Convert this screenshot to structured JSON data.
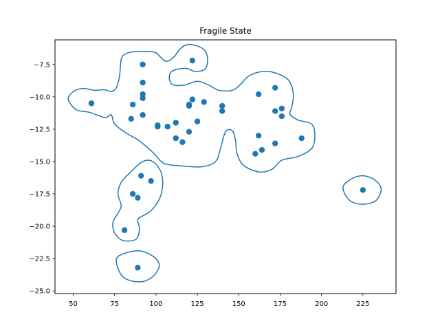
{
  "chart_data": {
    "type": "scatter",
    "title": "Fragile State",
    "xlabel": "",
    "ylabel": "",
    "xlim": [
      39,
      245
    ],
    "ylim": [
      -25.2,
      -5.6
    ],
    "grid": false,
    "x_ticks": [
      50,
      75,
      100,
      125,
      150,
      175,
      200,
      225
    ],
    "y_ticks": [
      -25.0,
      -22.5,
      -20.0,
      -17.5,
      -15.0,
      -12.5,
      -10.0,
      -7.5
    ],
    "x_tick_labels": [
      "50",
      "75",
      "100",
      "125",
      "150",
      "175",
      "200",
      "225"
    ],
    "y_tick_labels": [
      "−25.0",
      "−22.5",
      "−20.0",
      "−17.5",
      "−15.0",
      "−12.5",
      "−10.0",
      "−7.5"
    ],
    "colors": {
      "points": "#1f77b4",
      "contours": "#1f77b4",
      "axes": "#000000"
    },
    "points": [
      {
        "x": 61,
        "y": -10.5
      },
      {
        "x": 85,
        "y": -11.7
      },
      {
        "x": 86,
        "y": -10.6
      },
      {
        "x": 92,
        "y": -7.5
      },
      {
        "x": 92,
        "y": -8.9
      },
      {
        "x": 92,
        "y": -9.8
      },
      {
        "x": 92,
        "y": -10.1
      },
      {
        "x": 92,
        "y": -11.4
      },
      {
        "x": 101,
        "y": -12.3
      },
      {
        "x": 101,
        "y": -12.2
      },
      {
        "x": 107,
        "y": -12.3
      },
      {
        "x": 112,
        "y": -12.0
      },
      {
        "x": 112,
        "y": -13.2
      },
      {
        "x": 116,
        "y": -13.5
      },
      {
        "x": 120,
        "y": -12.7
      },
      {
        "x": 120,
        "y": -10.6
      },
      {
        "x": 120,
        "y": -10.7
      },
      {
        "x": 122,
        "y": -10.2
      },
      {
        "x": 122,
        "y": -7.2
      },
      {
        "x": 125,
        "y": -11.9
      },
      {
        "x": 129,
        "y": -10.4
      },
      {
        "x": 140,
        "y": -10.7
      },
      {
        "x": 140,
        "y": -11.1
      },
      {
        "x": 162,
        "y": -9.8
      },
      {
        "x": 162,
        "y": -13.0
      },
      {
        "x": 160,
        "y": -14.4
      },
      {
        "x": 164,
        "y": -14.1
      },
      {
        "x": 172,
        "y": -9.3
      },
      {
        "x": 172,
        "y": -11.1
      },
      {
        "x": 172,
        "y": -13.6
      },
      {
        "x": 176,
        "y": -10.9
      },
      {
        "x": 176,
        "y": -11.5
      },
      {
        "x": 188,
        "y": -13.2
      },
      {
        "x": 91,
        "y": -16.1
      },
      {
        "x": 97,
        "y": -16.5
      },
      {
        "x": 86,
        "y": -17.5
      },
      {
        "x": 89,
        "y": -17.8
      },
      {
        "x": 81,
        "y": -20.3
      },
      {
        "x": 89,
        "y": -23.2
      },
      {
        "x": 225,
        "y": -17.2
      }
    ],
    "contours": [
      [
        [
          47,
          -10.2
        ],
        [
          50,
          -9.6
        ],
        [
          56,
          -9.35
        ],
        [
          63,
          -9.5
        ],
        [
          69,
          -9.45
        ],
        [
          73,
          -9.6
        ],
        [
          76,
          -9.3
        ],
        [
          78,
          -8.4
        ],
        [
          79,
          -7.1
        ],
        [
          82,
          -6.65
        ],
        [
          88,
          -6.5
        ],
        [
          95,
          -6.5
        ],
        [
          100,
          -6.6
        ],
        [
          104,
          -7.1
        ],
        [
          107,
          -7.25
        ],
        [
          111,
          -6.9
        ],
        [
          115,
          -6.25
        ],
        [
          120,
          -5.95
        ],
        [
          128,
          -6.25
        ],
        [
          131,
          -6.9
        ],
        [
          130,
          -7.8
        ],
        [
          124,
          -8.05
        ],
        [
          118,
          -7.8
        ],
        [
          110,
          -8.0
        ],
        [
          108,
          -8.5
        ],
        [
          110,
          -9.05
        ],
        [
          117,
          -9.1
        ],
        [
          125,
          -8.8
        ],
        [
          132,
          -9.1
        ],
        [
          138,
          -9.5
        ],
        [
          146,
          -9.5
        ],
        [
          151,
          -9.05
        ],
        [
          156,
          -8.4
        ],
        [
          164,
          -8.05
        ],
        [
          172,
          -8.15
        ],
        [
          180,
          -8.7
        ],
        [
          183,
          -9.8
        ],
        [
          182,
          -10.8
        ],
        [
          181,
          -11.35
        ],
        [
          186,
          -11.8
        ],
        [
          194,
          -12.1
        ],
        [
          196,
          -13.0
        ],
        [
          194,
          -14.0
        ],
        [
          186,
          -14.6
        ],
        [
          176,
          -14.9
        ],
        [
          170,
          -15.6
        ],
        [
          162,
          -15.8
        ],
        [
          153,
          -15.3
        ],
        [
          149,
          -14.4
        ],
        [
          148,
          -13.3
        ],
        [
          146,
          -12.6
        ],
        [
          142,
          -12.7
        ],
        [
          139,
          -14.0
        ],
        [
          136,
          -15.0
        ],
        [
          128,
          -15.4
        ],
        [
          117,
          -15.35
        ],
        [
          105,
          -15.15
        ],
        [
          99,
          -14.4
        ],
        [
          90,
          -13.4
        ],
        [
          82,
          -12.8
        ],
        [
          75,
          -12.1
        ],
        [
          73,
          -11.4
        ],
        [
          69,
          -11.6
        ],
        [
          60,
          -11.2
        ],
        [
          52,
          -11.0
        ],
        [
          47,
          -10.2
        ]
      ],
      [
        [
          84,
          -15.9
        ],
        [
          92,
          -15.0
        ],
        [
          98,
          -15.0
        ],
        [
          103,
          -15.8
        ],
        [
          104,
          -16.9
        ],
        [
          102,
          -17.9
        ],
        [
          97,
          -18.8
        ],
        [
          92,
          -19.2
        ],
        [
          89,
          -19.5
        ],
        [
          90,
          -20.2
        ],
        [
          88,
          -21.0
        ],
        [
          80,
          -21.1
        ],
        [
          75,
          -20.5
        ],
        [
          74,
          -19.7
        ],
        [
          77,
          -19.0
        ],
        [
          79,
          -18.4
        ],
        [
          77,
          -17.5
        ],
        [
          79,
          -16.6
        ],
        [
          84,
          -15.9
        ]
      ],
      [
        [
          76,
          -22.6
        ],
        [
          81,
          -22.1
        ],
        [
          90,
          -21.9
        ],
        [
          98,
          -22.3
        ],
        [
          102,
          -23.0
        ],
        [
          98,
          -23.9
        ],
        [
          90,
          -24.3
        ],
        [
          80,
          -23.9
        ],
        [
          76,
          -22.6
        ]
      ],
      [
        [
          213,
          -17.0
        ],
        [
          218,
          -16.35
        ],
        [
          225,
          -16.1
        ],
        [
          232,
          -16.4
        ],
        [
          236,
          -17.1
        ],
        [
          233,
          -18.0
        ],
        [
          225,
          -18.3
        ],
        [
          217,
          -18.0
        ],
        [
          213,
          -17.0
        ]
      ]
    ]
  }
}
